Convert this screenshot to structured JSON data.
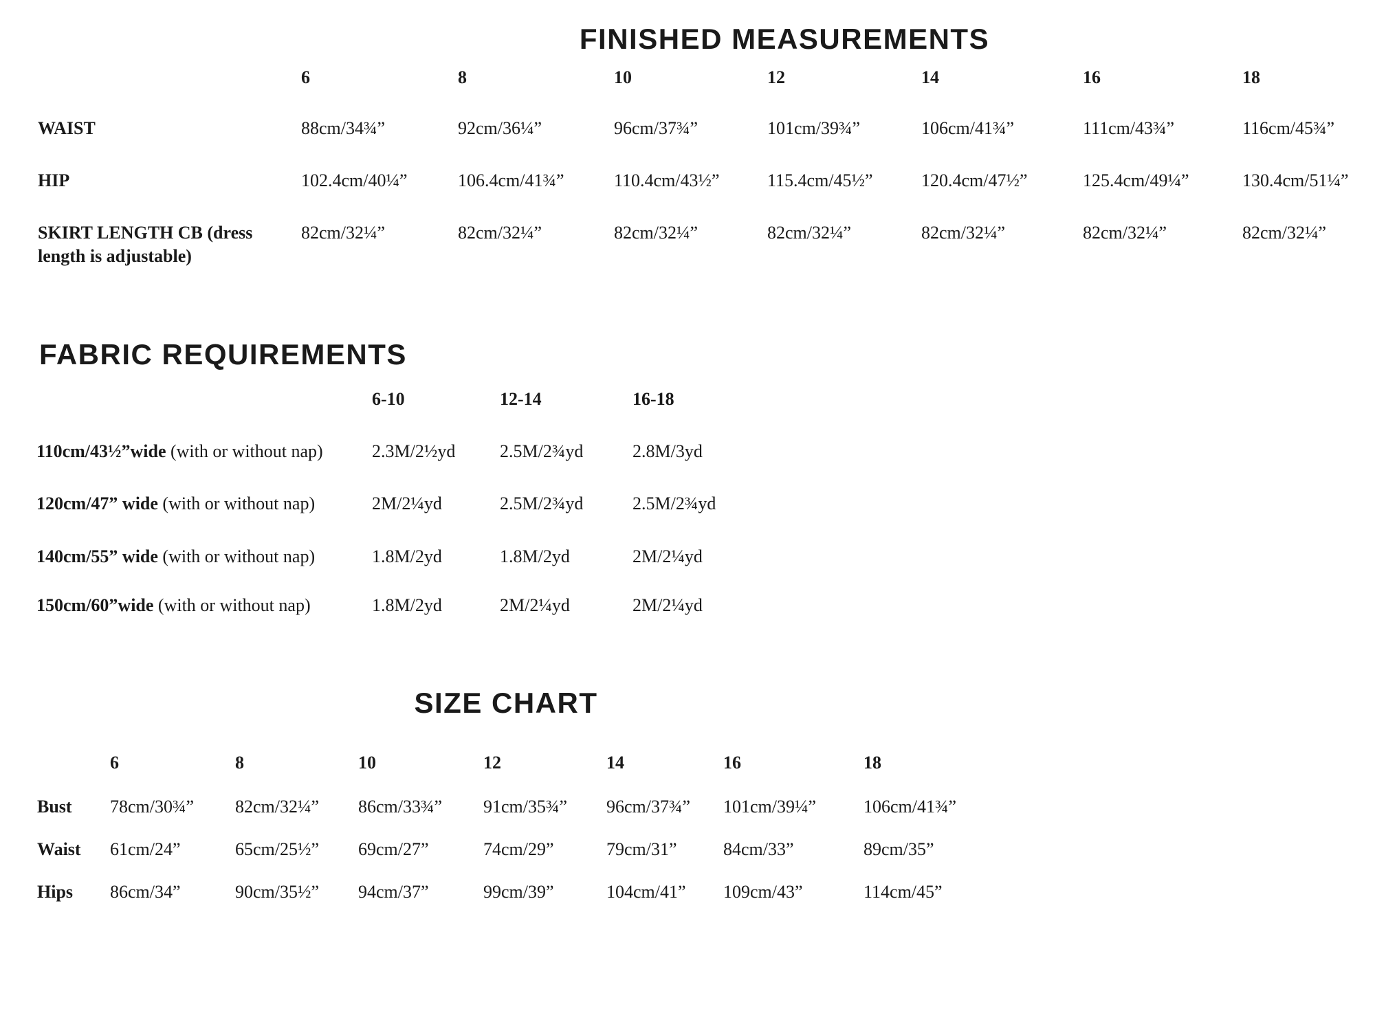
{
  "finished_measurements": {
    "title": "FINISHED MEASUREMENTS",
    "sizes": [
      "6",
      "8",
      "10",
      "12",
      "14",
      "16",
      "18"
    ],
    "rows": [
      {
        "label": "WAIST",
        "values": [
          "88cm/34¾”",
          "92cm/36¼”",
          "96cm/37¾”",
          "101cm/39¾”",
          "106cm/41¾”",
          "111cm/43¾”",
          "116cm/45¾”"
        ]
      },
      {
        "label": "HIP",
        "values": [
          "102.4cm/40¼”",
          "106.4cm/41¾”",
          "110.4cm/43½”",
          "115.4cm/45½”",
          "120.4cm/47½”",
          "125.4cm/49¼”",
          "130.4cm/51¼”"
        ]
      },
      {
        "label": "SKIRT LENGTH CB (dress length is adjustable)",
        "values": [
          "82cm/32¼”",
          "82cm/32¼”",
          "82cm/32¼”",
          "82cm/32¼”",
          "82cm/32¼”",
          "82cm/32¼”",
          "82cm/32¼”"
        ]
      }
    ]
  },
  "fabric_requirements": {
    "title": "FABRIC REQUIREMENTS",
    "sizes": [
      "6-10",
      "12-14",
      "16-18"
    ],
    "rows": [
      {
        "label_bold": "110cm/43½”wide",
        "label_normal": " (with or without nap)",
        "values": [
          "2.3M/2½yd",
          "2.5M/2¾yd",
          "2.8M/3yd"
        ]
      },
      {
        "label_bold": "120cm/47” wide",
        "label_normal": " (with or without nap)",
        "values": [
          "2M/2¼yd",
          "2.5M/2¾yd",
          "2.5M/2¾yd"
        ]
      },
      {
        "label_bold": "140cm/55” wide",
        "label_normal": " (with or without nap)",
        "values": [
          "1.8M/2yd",
          "1.8M/2yd",
          "2M/2¼yd"
        ]
      },
      {
        "label_bold": "150cm/60”wide",
        "label_normal": " (with or without nap)",
        "values": [
          "1.8M/2yd",
          "2M/2¼yd",
          "2M/2¼yd"
        ]
      }
    ]
  },
  "size_chart": {
    "title": "SIZE CHART",
    "sizes": [
      "6",
      "8",
      "10",
      "12",
      "14",
      "16",
      "18"
    ],
    "rows": [
      {
        "label": "Bust",
        "values": [
          "78cm/30¾”",
          "82cm/32¼”",
          "86cm/33¾”",
          "91cm/35¾”",
          "96cm/37¾”",
          "101cm/39¼”",
          "106cm/41¾”"
        ]
      },
      {
        "label": "Waist",
        "values": [
          "61cm/24”",
          "65cm/25½”",
          "69cm/27”",
          "74cm/29”",
          "79cm/31”",
          "84cm/33”",
          "89cm/35”"
        ]
      },
      {
        "label": "Hips",
        "values": [
          "86cm/34”",
          "90cm/35½”",
          "94cm/37”",
          "99cm/39”",
          "104cm/41”",
          "109cm/43”",
          "114cm/45”"
        ]
      }
    ]
  }
}
